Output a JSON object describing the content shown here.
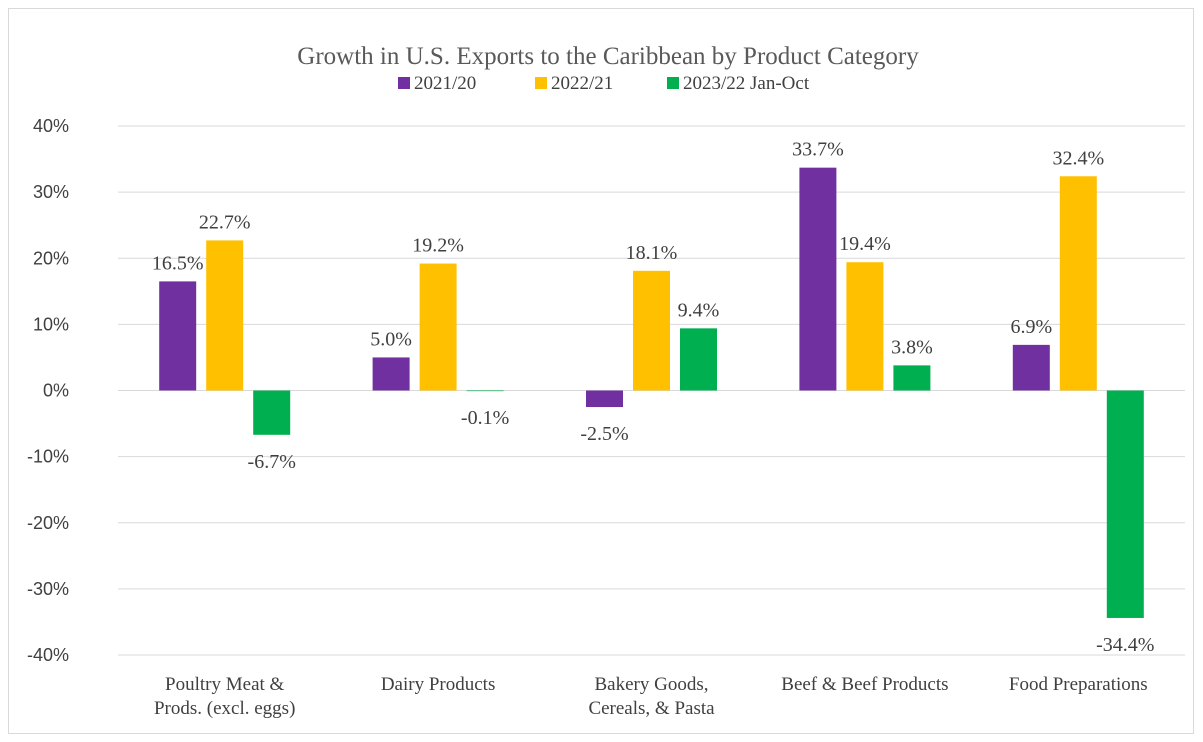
{
  "chart_data": {
    "type": "bar",
    "title": "Growth in U.S. Exports to the Caribbean by Product Category",
    "categories": [
      [
        "Poultry Meat &",
        "Prods. (excl. eggs)"
      ],
      [
        "Dairy Products"
      ],
      [
        "Bakery Goods,",
        "Cereals, & Pasta"
      ],
      [
        "Beef & Beef Products"
      ],
      [
        "Food Preparations"
      ]
    ],
    "series": [
      {
        "name": "2021/20",
        "color": "#7030a0",
        "values": [
          16.5,
          5.0,
          -2.5,
          33.7,
          6.9
        ],
        "labels": [
          "16.5%",
          "5.0%",
          "-2.5%",
          "33.7%",
          "6.9%"
        ]
      },
      {
        "name": "2022/21",
        "color": "#ffc000",
        "values": [
          22.7,
          19.2,
          18.1,
          19.4,
          32.4
        ],
        "labels": [
          "22.7%",
          "19.2%",
          "18.1%",
          "19.4%",
          "32.4%"
        ]
      },
      {
        "name": "2023/22 Jan-Oct",
        "color": "#00b050",
        "values": [
          -6.7,
          -0.1,
          9.4,
          3.8,
          -34.4
        ],
        "labels": [
          "-6.7%",
          "-0.1%",
          "9.4%",
          "3.8%",
          "-34.4%"
        ]
      }
    ],
    "ylim": [
      -40,
      40
    ],
    "yticks": [
      40,
      30,
      20,
      10,
      0,
      -10,
      -20,
      -30,
      -40
    ],
    "ytick_labels": [
      "40%",
      "30%",
      "20%",
      "10%",
      "0%",
      "-10%",
      "-20%",
      "-30%",
      "-40%"
    ],
    "grid": true,
    "legend_position": "top-center"
  }
}
